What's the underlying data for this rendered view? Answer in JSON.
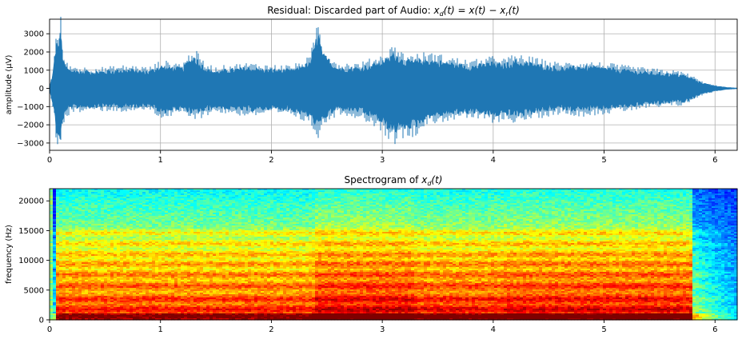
{
  "chart_data": [
    {
      "type": "line",
      "title_prefix": "Residual: Discarded part of Audio: ",
      "title_math": {
        "a": "x",
        "a_sub": "d",
        "b": "(t) = x(t) − x",
        "b_sub": "r",
        "c": "(t)"
      },
      "xlabel": "",
      "ylabel": "amplitude (μV)",
      "xlim": [
        0,
        6.2
      ],
      "ylim": [
        -3400,
        3800
      ],
      "xticks": [
        0,
        1,
        2,
        3,
        4,
        5,
        6
      ],
      "yticks": [
        -3000,
        -2000,
        -1000,
        0,
        1000,
        2000,
        3000
      ],
      "grid": true,
      "color": "#1f77b4",
      "envelope": {
        "t": [
          0,
          0.03,
          0.06,
          0.08,
          0.1,
          0.12,
          0.14,
          0.18,
          0.3,
          0.5,
          0.7,
          0.9,
          1.0,
          1.2,
          1.3,
          1.4,
          1.5,
          1.6,
          1.8,
          2.0,
          2.2,
          2.35,
          2.42,
          2.46,
          2.6,
          2.8,
          2.95,
          3.05,
          3.1,
          3.2,
          3.3,
          3.4,
          3.6,
          3.8,
          4.0,
          4.1,
          4.2,
          4.4,
          4.6,
          4.8,
          5.0,
          5.3,
          5.5,
          5.7,
          5.8,
          5.85,
          5.9,
          6.0,
          6.1,
          6.2
        ],
        "upper": [
          100,
          900,
          2600,
          2500,
          3400,
          1800,
          1300,
          1100,
          1000,
          1000,
          1100,
          1000,
          1300,
          1200,
          1900,
          1200,
          1000,
          1100,
          1200,
          1100,
          1100,
          1500,
          3300,
          2000,
          1200,
          1200,
          1500,
          1700,
          2100,
          1600,
          1600,
          1700,
          1500,
          1300,
          1500,
          1400,
          1600,
          1400,
          1200,
          1300,
          1200,
          1000,
          900,
          800,
          600,
          400,
          300,
          150,
          60,
          20
        ],
        "lower": [
          -100,
          -900,
          -2400,
          -3100,
          -2800,
          -2000,
          -1400,
          -1200,
          -1100,
          -1050,
          -1100,
          -1000,
          -1400,
          -1200,
          -1500,
          -1300,
          -1100,
          -1200,
          -1300,
          -1200,
          -1300,
          -1700,
          -2300,
          -1800,
          -1200,
          -1400,
          -1800,
          -2300,
          -2600,
          -2300,
          -2200,
          -1700,
          -1500,
          -1400,
          -1600,
          -1500,
          -1600,
          -1400,
          -1200,
          -1300,
          -1200,
          -1000,
          -900,
          -800,
          -600,
          -400,
          -300,
          -150,
          -60,
          -20
        ]
      }
    },
    {
      "type": "heatmap",
      "title_prefix": "Spectrogram of ",
      "title_math": {
        "a": "x",
        "a_sub": "d",
        "b": "(t)"
      },
      "xlabel": "",
      "ylabel": "frequency (Hz)",
      "xlim": [
        0,
        6.2
      ],
      "ylim": [
        0,
        22050
      ],
      "xticks": [
        0,
        1,
        2,
        3,
        4,
        5,
        6
      ],
      "yticks": [
        0,
        5000,
        10000,
        15000,
        20000
      ],
      "colormap": "jet",
      "bands_hz": [
        600,
        1800,
        3500,
        5700,
        7600,
        9400,
        11000,
        12800,
        14600
      ],
      "activity_segments": [
        {
          "t0": 0.05,
          "t1": 2.4,
          "level": 0.75
        },
        {
          "t0": 2.4,
          "t1": 3.3,
          "level": 0.82
        },
        {
          "t0": 3.3,
          "t1": 4.1,
          "level": 0.78
        },
        {
          "t0": 4.1,
          "t1": 5.8,
          "level": 0.8
        },
        {
          "t0": 5.8,
          "t1": 6.2,
          "level": 0.45
        }
      ]
    }
  ]
}
